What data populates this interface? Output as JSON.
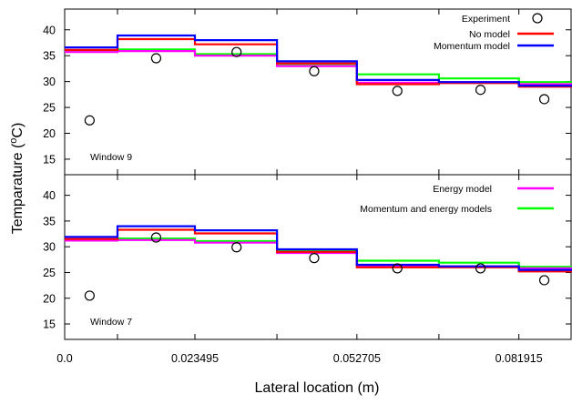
{
  "chart_data": {
    "type": "line",
    "xlabel": "Lateral location (m)",
    "ylabel": "Temparature (°C)",
    "ylabel_parts": [
      "Temparature (",
      "o",
      "C)"
    ],
    "xlim": [
      0,
      0.0915
    ],
    "x_ticks": [
      0,
      0.023495,
      0.052705,
      0.081915
    ],
    "x_tick_labels": [
      "0.0",
      "0.023495",
      "0.052705",
      "0.081915"
    ],
    "x_minor_ticks": [
      0.009525,
      0.038285,
      0.067495
    ],
    "grid": false,
    "legend_placement": "top-right",
    "legend": [
      {
        "name": "Experiment",
        "marker": "circle",
        "color": "#000000"
      },
      {
        "name": "No model",
        "color": "#ff0000"
      },
      {
        "name": "Momentum model",
        "color": "#0000ff"
      },
      {
        "name": "Energy model",
        "color": "#ff00ff"
      },
      {
        "name": "Momentum and energy models",
        "color": "#00ff00"
      }
    ],
    "step_edges": [
      0,
      0.009525,
      0.023495,
      0.038285,
      0.052705,
      0.067495,
      0.081915,
      0.0915
    ],
    "panels": [
      {
        "annotation": "Window 9",
        "ylim": [
          12,
          44
        ],
        "y_ticks": [
          15,
          20,
          25,
          30,
          35,
          40
        ],
        "y_tick_labels": [
          "15",
          "20",
          "25",
          "30",
          "35",
          "40"
        ],
        "legend_entries": [
          0,
          1,
          2
        ],
        "experiment": {
          "x": [
            0.0045,
            0.0165,
            0.031,
            0.045,
            0.06,
            0.075,
            0.0865
          ],
          "y": [
            22.5,
            34.5,
            35.7,
            32,
            28.2,
            28.4,
            26.6
          ]
        },
        "series": [
          {
            "name": "No model",
            "color": "#ff0000",
            "values": [
              36.1,
              38.2,
              37.2,
              33.5,
              29.5,
              29.7,
              29.0
            ]
          },
          {
            "name": "Momentum model",
            "color": "#0000ff",
            "values": [
              36.6,
              38.9,
              38.0,
              33.9,
              30.3,
              29.9,
              29.2
            ]
          },
          {
            "name": "Energy model",
            "color": "#ff00ff",
            "values": [
              35.7,
              35.9,
              35.0,
              33.0,
              29.8,
              29.9,
              29.5
            ]
          },
          {
            "name": "Momentum and energy models",
            "color": "#00ff00",
            "values": [
              35.9,
              36.2,
              35.3,
              33.4,
              31.4,
              30.6,
              29.9
            ]
          }
        ]
      },
      {
        "annotation": "Window 7",
        "ylim": [
          12,
          44
        ],
        "y_ticks": [
          15,
          20,
          25,
          30,
          35,
          40
        ],
        "y_tick_labels": [
          "15",
          "20",
          "25",
          "30",
          "35",
          "40"
        ],
        "legend_entries": [
          3,
          4
        ],
        "experiment": {
          "x": [
            0.0045,
            0.0165,
            0.031,
            0.045,
            0.06,
            0.075,
            0.0865
          ],
          "y": [
            20.5,
            31.8,
            29.9,
            27.8,
            25.8,
            25.8,
            23.5
          ]
        },
        "series": [
          {
            "name": "No model",
            "color": "#ff0000",
            "values": [
              31.5,
              33.3,
              32.6,
              29.0,
              26.0,
              26.0,
              25.2
            ]
          },
          {
            "name": "Momentum model",
            "color": "#0000ff",
            "values": [
              31.9,
              34.0,
              33.2,
              29.5,
              26.5,
              26.2,
              25.5
            ]
          },
          {
            "name": "Energy model",
            "color": "#ff00ff",
            "values": [
              31.2,
              31.3,
              30.8,
              28.8,
              26.2,
              26.2,
              25.8
            ]
          },
          {
            "name": "Momentum and energy models",
            "color": "#00ff00",
            "values": [
              31.4,
              31.6,
              31.1,
              29.2,
              27.3,
              26.9,
              26.1
            ]
          }
        ]
      }
    ]
  }
}
